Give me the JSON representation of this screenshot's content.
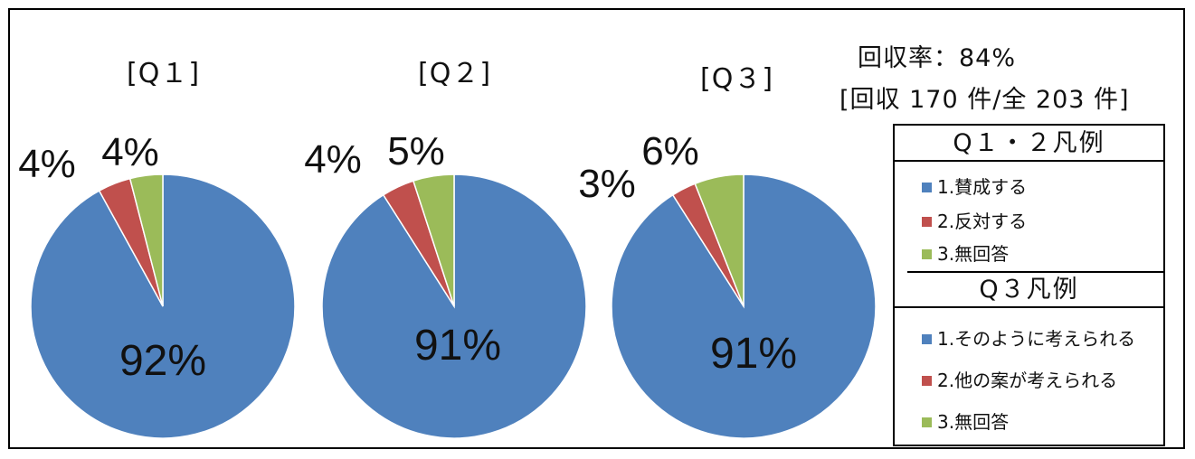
{
  "response": {
    "line1": "回収率：84%",
    "line2": "[回収 170 件/全 203 件]"
  },
  "colors": {
    "agree": "#4F81BD",
    "disagree": "#C0504D",
    "none": "#9BBB59"
  },
  "legend_q12": {
    "title": "Q１・２凡例",
    "items": [
      "1.賛成する",
      "2.反対する",
      "3.無回答"
    ]
  },
  "legend_q3": {
    "title": "Q３凡例",
    "items": [
      "1.そのように考えられる",
      "2.他の案が考えられる",
      "3.無回答"
    ]
  },
  "chart_data": [
    {
      "type": "pie",
      "title": "[Q１]",
      "labels": [
        "1.賛成する",
        "2.反対する",
        "3.無回答"
      ],
      "values": [
        92,
        4,
        4
      ],
      "data_labels": [
        "92%",
        "4%",
        "4%"
      ]
    },
    {
      "type": "pie",
      "title": "[Q２]",
      "labels": [
        "1.賛成する",
        "2.反対する",
        "3.無回答"
      ],
      "values": [
        91,
        4,
        5
      ],
      "data_labels": [
        "91%",
        "4%",
        "5%"
      ]
    },
    {
      "type": "pie",
      "title": "[Q３]",
      "labels": [
        "1.そのように考えられる",
        "2.他の案が考えられる",
        "3.無回答"
      ],
      "values": [
        91,
        3,
        6
      ],
      "data_labels": [
        "91%",
        "3%",
        "6%"
      ]
    }
  ]
}
